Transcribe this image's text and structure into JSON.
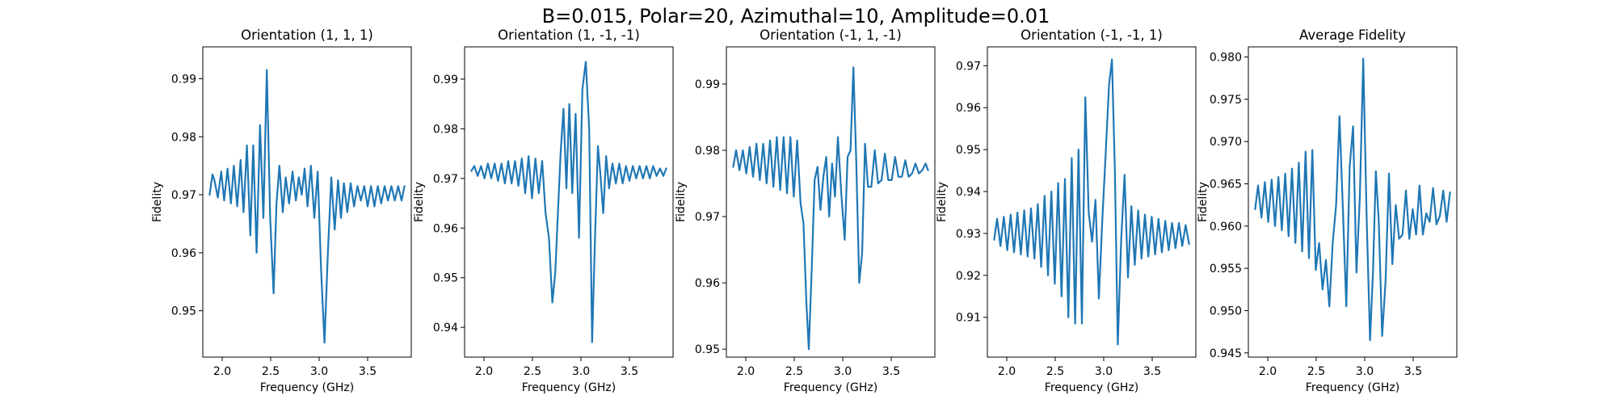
{
  "figure": {
    "suptitle": "B=0.015, Polar=20, Azimuthal=10, Amplitude=0.01",
    "line_color": "#1f77b4"
  },
  "chart_data": [
    {
      "type": "line",
      "title": "Orientation (1, 1, 1)",
      "xlabel": "Frequency (GHz)",
      "ylabel": "Fidelity",
      "xlim": [
        1.8,
        3.95
      ],
      "ylim": [
        0.942,
        0.9955
      ],
      "xticks": [
        2.0,
        2.5,
        3.0,
        3.5
      ],
      "xtick_labels": [
        "2.0",
        "2.5",
        "3.0",
        "3.5"
      ],
      "yticks": [
        0.95,
        0.96,
        0.97,
        0.98,
        0.99
      ],
      "ytick_labels": [
        "0.95",
        "0.96",
        "0.97",
        "0.98",
        "0.99"
      ],
      "x": [
        1.87,
        1.9,
        1.92,
        1.955,
        1.99,
        2.02,
        2.055,
        2.09,
        2.12,
        2.155,
        2.19,
        2.22,
        2.255,
        2.29,
        2.32,
        2.355,
        2.39,
        2.425,
        2.46,
        2.495,
        2.53,
        2.56,
        2.59,
        2.625,
        2.655,
        2.69,
        2.725,
        2.76,
        2.79,
        2.82,
        2.85,
        2.88,
        2.915,
        2.95,
        2.985,
        3.02,
        3.055,
        3.09,
        3.125,
        3.16,
        3.195,
        3.225,
        3.255,
        3.29,
        3.325,
        3.36,
        3.395,
        3.43,
        3.465,
        3.5,
        3.535,
        3.57,
        3.605,
        3.64,
        3.675,
        3.71,
        3.745,
        3.78,
        3.815,
        3.85,
        3.88
      ],
      "y": [
        0.97,
        0.9735,
        0.9725,
        0.9695,
        0.974,
        0.969,
        0.9745,
        0.9685,
        0.975,
        0.968,
        0.976,
        0.967,
        0.9785,
        0.963,
        0.9785,
        0.96,
        0.982,
        0.966,
        0.9915,
        0.966,
        0.953,
        0.9685,
        0.975,
        0.967,
        0.973,
        0.9685,
        0.974,
        0.969,
        0.973,
        0.97,
        0.9745,
        0.968,
        0.975,
        0.966,
        0.974,
        0.957,
        0.9445,
        0.96,
        0.973,
        0.964,
        0.9725,
        0.966,
        0.972,
        0.967,
        0.972,
        0.968,
        0.9715,
        0.969,
        0.9715,
        0.968,
        0.9715,
        0.968,
        0.9715,
        0.9685,
        0.9715,
        0.969,
        0.9715,
        0.969,
        0.9715,
        0.969,
        0.9715
      ]
    },
    {
      "type": "line",
      "title": "Orientation (1, -1, -1)",
      "xlabel": "Frequency (GHz)",
      "ylabel": "Fidelity",
      "xlim": [
        1.8,
        3.95
      ],
      "ylim": [
        0.934,
        0.9965
      ],
      "xticks": [
        2.0,
        2.5,
        3.0,
        3.5
      ],
      "xtick_labels": [
        "2.0",
        "2.5",
        "3.0",
        "3.5"
      ],
      "yticks": [
        0.94,
        0.95,
        0.96,
        0.97,
        0.98,
        0.99
      ],
      "ytick_labels": [
        "0.94",
        "0.95",
        "0.96",
        "0.97",
        "0.98",
        "0.99"
      ],
      "x": [
        1.87,
        1.9,
        1.935,
        1.97,
        2.005,
        2.04,
        2.075,
        2.11,
        2.145,
        2.18,
        2.215,
        2.25,
        2.285,
        2.32,
        2.355,
        2.39,
        2.425,
        2.46,
        2.495,
        2.53,
        2.565,
        2.6,
        2.635,
        2.67,
        2.705,
        2.735,
        2.76,
        2.79,
        2.82,
        2.85,
        2.88,
        2.91,
        2.945,
        2.98,
        3.015,
        3.05,
        3.085,
        3.115,
        3.145,
        3.175,
        3.2,
        3.23,
        3.26,
        3.29,
        3.325,
        3.36,
        3.395,
        3.43,
        3.465,
        3.5,
        3.535,
        3.57,
        3.605,
        3.64,
        3.675,
        3.71,
        3.745,
        3.78,
        3.815,
        3.85,
        3.88
      ],
      "y": [
        0.9715,
        0.9725,
        0.9705,
        0.9725,
        0.97,
        0.973,
        0.97,
        0.973,
        0.9695,
        0.973,
        0.969,
        0.9735,
        0.969,
        0.9735,
        0.9685,
        0.974,
        0.967,
        0.9745,
        0.966,
        0.974,
        0.967,
        0.9735,
        0.963,
        0.958,
        0.945,
        0.951,
        0.962,
        0.975,
        0.984,
        0.968,
        0.985,
        0.967,
        0.983,
        0.958,
        0.988,
        0.9935,
        0.98,
        0.937,
        0.958,
        0.9765,
        0.971,
        0.963,
        0.9745,
        0.968,
        0.973,
        0.969,
        0.973,
        0.969,
        0.9725,
        0.9695,
        0.9725,
        0.97,
        0.9725,
        0.97,
        0.9725,
        0.97,
        0.9725,
        0.9705,
        0.972,
        0.9705,
        0.972
      ]
    },
    {
      "type": "line",
      "title": "Orientation (-1, 1, -1)",
      "xlabel": "Frequency (GHz)",
      "ylabel": "Fidelity",
      "xlim": [
        1.8,
        3.95
      ],
      "ylim": [
        0.9488,
        0.9956
      ],
      "xticks": [
        2.0,
        2.5,
        3.0,
        3.5
      ],
      "xtick_labels": [
        "2.0",
        "2.5",
        "3.0",
        "3.5"
      ],
      "yticks": [
        0.95,
        0.96,
        0.97,
        0.98,
        0.99
      ],
      "ytick_labels": [
        "0.95",
        "0.96",
        "0.97",
        "0.98",
        "0.99"
      ],
      "x": [
        1.87,
        1.9,
        1.935,
        1.97,
        2.005,
        2.04,
        2.075,
        2.11,
        2.145,
        2.18,
        2.215,
        2.25,
        2.285,
        2.32,
        2.355,
        2.39,
        2.425,
        2.46,
        2.495,
        2.53,
        2.565,
        2.595,
        2.625,
        2.65,
        2.68,
        2.71,
        2.74,
        2.77,
        2.8,
        2.83,
        2.86,
        2.89,
        2.92,
        2.95,
        2.985,
        3.02,
        3.05,
        3.08,
        3.11,
        3.14,
        3.17,
        3.2,
        3.23,
        3.26,
        3.295,
        3.33,
        3.365,
        3.4,
        3.435,
        3.47,
        3.505,
        3.54,
        3.575,
        3.61,
        3.645,
        3.68,
        3.715,
        3.75,
        3.785,
        3.82,
        3.855,
        3.88
      ],
      "y": [
        0.9775,
        0.98,
        0.977,
        0.98,
        0.9765,
        0.9805,
        0.976,
        0.981,
        0.9755,
        0.981,
        0.975,
        0.9815,
        0.9745,
        0.982,
        0.974,
        0.982,
        0.9735,
        0.982,
        0.973,
        0.9815,
        0.972,
        0.969,
        0.957,
        0.95,
        0.962,
        0.9755,
        0.9775,
        0.971,
        0.976,
        0.979,
        0.97,
        0.978,
        0.973,
        0.982,
        0.9735,
        0.9665,
        0.979,
        0.98,
        0.9925,
        0.978,
        0.96,
        0.9645,
        0.981,
        0.9745,
        0.9745,
        0.98,
        0.975,
        0.9755,
        0.9795,
        0.9755,
        0.9755,
        0.979,
        0.976,
        0.976,
        0.9785,
        0.976,
        0.9765,
        0.978,
        0.9765,
        0.977,
        0.978,
        0.977
      ]
    },
    {
      "type": "line",
      "title": "Orientation (-1, -1, 1)",
      "xlabel": "Frequency (GHz)",
      "ylabel": "Fidelity",
      "xlim": [
        1.8,
        3.95
      ],
      "ylim": [
        0.9005,
        0.9745
      ],
      "xticks": [
        2.0,
        2.5,
        3.0,
        3.5
      ],
      "xtick_labels": [
        "2.0",
        "2.5",
        "3.0",
        "3.5"
      ],
      "yticks": [
        0.91,
        0.92,
        0.93,
        0.94,
        0.95,
        0.96,
        0.97
      ],
      "ytick_labels": [
        "0.91",
        "0.92",
        "0.93",
        "0.94",
        "0.95",
        "0.96",
        "0.97"
      ],
      "x": [
        1.87,
        1.9,
        1.935,
        1.97,
        2.005,
        2.04,
        2.075,
        2.11,
        2.145,
        2.18,
        2.215,
        2.25,
        2.285,
        2.32,
        2.355,
        2.39,
        2.425,
        2.46,
        2.495,
        2.53,
        2.565,
        2.6,
        2.635,
        2.67,
        2.705,
        2.74,
        2.775,
        2.81,
        2.845,
        2.88,
        2.915,
        2.95,
        2.985,
        3.02,
        3.055,
        3.085,
        3.115,
        3.145,
        3.18,
        3.215,
        3.25,
        3.285,
        3.32,
        3.355,
        3.39,
        3.425,
        3.46,
        3.495,
        3.53,
        3.565,
        3.6,
        3.635,
        3.67,
        3.705,
        3.74,
        3.775,
        3.81,
        3.845,
        3.88
      ],
      "y": [
        0.9285,
        0.9335,
        0.927,
        0.934,
        0.926,
        0.9345,
        0.9255,
        0.935,
        0.925,
        0.9355,
        0.9245,
        0.936,
        0.924,
        0.937,
        0.922,
        0.939,
        0.92,
        0.94,
        0.918,
        0.942,
        0.915,
        0.943,
        0.91,
        0.948,
        0.9085,
        0.95,
        0.9085,
        0.9625,
        0.935,
        0.928,
        0.938,
        0.9145,
        0.933,
        0.949,
        0.9655,
        0.9715,
        0.945,
        0.9035,
        0.9285,
        0.944,
        0.9195,
        0.9365,
        0.9225,
        0.9355,
        0.924,
        0.9345,
        0.9245,
        0.934,
        0.925,
        0.9335,
        0.9255,
        0.933,
        0.926,
        0.9325,
        0.9265,
        0.9325,
        0.927,
        0.932,
        0.9275
      ]
    },
    {
      "type": "line",
      "title": "Average Fidelity",
      "xlabel": "Frequency (GHz)",
      "ylabel": "Fidelity",
      "xlim": [
        1.8,
        3.95
      ],
      "ylim": [
        0.9445,
        0.9812
      ],
      "xticks": [
        2.0,
        2.5,
        3.0,
        3.5
      ],
      "xtick_labels": [
        "2.0",
        "2.5",
        "3.0",
        "3.5"
      ],
      "yticks": [
        0.945,
        0.95,
        0.955,
        0.96,
        0.965,
        0.97,
        0.975,
        0.98
      ],
      "ytick_labels": [
        "0.945",
        "0.950",
        "0.955",
        "0.960",
        "0.965",
        "0.970",
        "0.975",
        "0.980"
      ],
      "x": [
        1.87,
        1.9,
        1.935,
        1.97,
        2.005,
        2.04,
        2.075,
        2.11,
        2.145,
        2.18,
        2.215,
        2.25,
        2.285,
        2.32,
        2.355,
        2.39,
        2.425,
        2.46,
        2.495,
        2.53,
        2.565,
        2.6,
        2.635,
        2.67,
        2.705,
        2.74,
        2.775,
        2.81,
        2.845,
        2.88,
        2.915,
        2.95,
        2.985,
        3.02,
        3.055,
        3.085,
        3.115,
        3.145,
        3.18,
        3.215,
        3.25,
        3.285,
        3.32,
        3.355,
        3.39,
        3.425,
        3.46,
        3.495,
        3.53,
        3.565,
        3.6,
        3.635,
        3.67,
        3.705,
        3.74,
        3.775,
        3.81,
        3.845,
        3.88
      ],
      "y": [
        0.962,
        0.9648,
        0.961,
        0.9652,
        0.9605,
        0.9655,
        0.96,
        0.9658,
        0.9595,
        0.9662,
        0.9588,
        0.9668,
        0.958,
        0.9675,
        0.957,
        0.9688,
        0.9562,
        0.969,
        0.9548,
        0.958,
        0.9525,
        0.956,
        0.9505,
        0.958,
        0.9625,
        0.973,
        0.962,
        0.9505,
        0.967,
        0.9718,
        0.9545,
        0.9635,
        0.9798,
        0.961,
        0.9465,
        0.9545,
        0.9665,
        0.9605,
        0.947,
        0.9535,
        0.9662,
        0.9555,
        0.9625,
        0.9585,
        0.959,
        0.9642,
        0.9585,
        0.962,
        0.959,
        0.9648,
        0.959,
        0.9615,
        0.9605,
        0.9645,
        0.9602,
        0.9612,
        0.9642,
        0.9605,
        0.964
      ]
    }
  ]
}
